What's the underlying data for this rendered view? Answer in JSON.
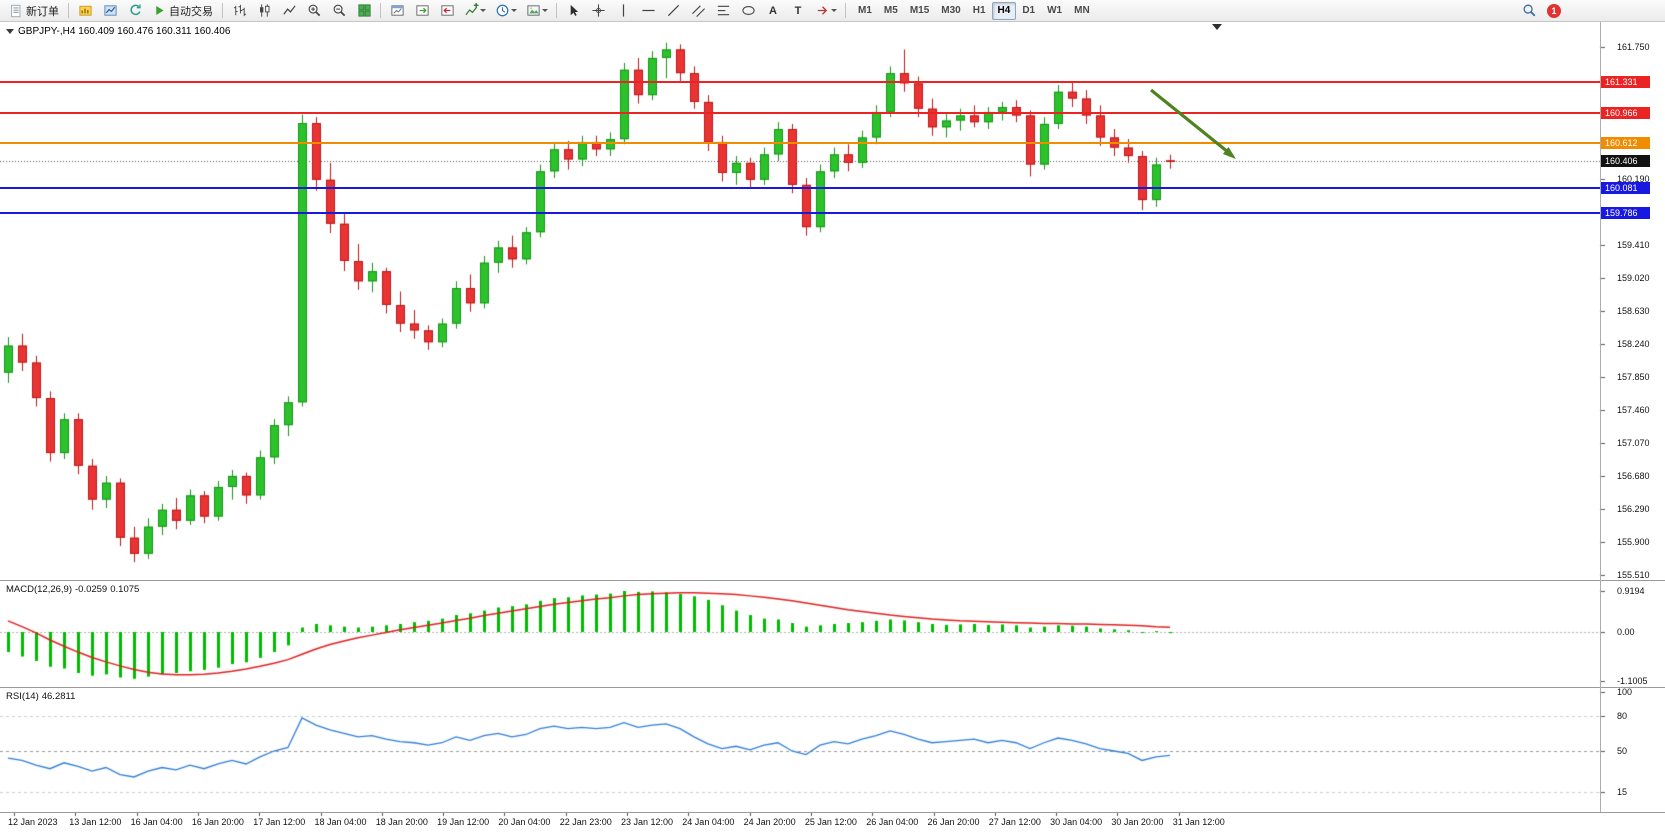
{
  "toolbar": {
    "new_order_label": "新订单",
    "auto_trading_label": "自动交易",
    "timeframes": [
      "M1",
      "M5",
      "M15",
      "M30",
      "H1",
      "H4",
      "D1",
      "W1",
      "MN"
    ],
    "active_timeframe": "H4",
    "notification_count": "1"
  },
  "icons": {
    "text_tool": "A",
    "label_tool": "T"
  },
  "chart": {
    "title": "GBPJPY-,H4  160.409 160.476 160.311 160.406",
    "symbol_period": "GBPJPY-,H4",
    "current_ohlc": {
      "open": "160.409",
      "high": "160.476",
      "low": "160.311",
      "close": "160.406"
    }
  },
  "price_axis": {
    "ticks": [
      {
        "label": "161.750",
        "price": 161.75
      },
      {
        "label": "161.360",
        "price": 161.36
      },
      {
        "label": "160.970",
        "price": 160.97
      },
      {
        "label": "160.580",
        "price": 160.58
      },
      {
        "label": "160.190",
        "price": 160.19
      },
      {
        "label": "159.800",
        "price": 159.8
      },
      {
        "label": "159.410",
        "price": 159.41
      },
      {
        "label": "159.020",
        "price": 159.02
      },
      {
        "label": "158.630",
        "price": 158.63
      },
      {
        "label": "158.240",
        "price": 158.24
      },
      {
        "label": "157.850",
        "price": 157.85
      },
      {
        "label": "157.460",
        "price": 157.46
      },
      {
        "label": "157.070",
        "price": 157.07
      },
      {
        "label": "156.680",
        "price": 156.68
      },
      {
        "label": "156.290",
        "price": 156.29
      },
      {
        "label": "155.900",
        "price": 155.9
      },
      {
        "label": "155.510",
        "price": 155.51
      }
    ],
    "tags": [
      {
        "label": "161.331",
        "price": 161.331,
        "color": "#ec2323"
      },
      {
        "label": "160.966",
        "price": 160.966,
        "color": "#ec2323"
      },
      {
        "label": "160.612",
        "price": 160.612,
        "color": "#f08c00"
      },
      {
        "label": "160.406",
        "price": 160.406,
        "color": "#111111"
      },
      {
        "label": "160.081",
        "price": 160.081,
        "color": "#1818e0"
      },
      {
        "label": "159.786",
        "price": 159.786,
        "color": "#1818e0"
      }
    ]
  },
  "macd_panel": {
    "label": "MACD(12,26,9)",
    "value": "-0.0259",
    "signal": "0.1075",
    "axis": [
      {
        "label": "0.9194",
        "v": 0.9194
      },
      {
        "label": "0.00",
        "v": 0
      },
      {
        "label": "-1.1005",
        "v": -1.1005
      }
    ]
  },
  "rsi_panel": {
    "label": "RSI(14)",
    "value": "46.2811",
    "axis": [
      {
        "label": "100",
        "v": 100
      },
      {
        "label": "80",
        "v": 80
      },
      {
        "label": "50",
        "v": 50
      },
      {
        "label": "15",
        "v": 15
      }
    ]
  },
  "time_axis": {
    "labels": [
      "12 Jan 2023",
      "13 Jan 12:00",
      "16 Jan 04:00",
      "16 Jan 20:00",
      "17 Jan 12:00",
      "18 Jan 04:00",
      "18 Jan 20:00",
      "19 Jan 12:00",
      "20 Jan 04:00",
      "22 Jan 23:00",
      "23 Jan 12:00",
      "24 Jan 04:00",
      "24 Jan 20:00",
      "25 Jan 12:00",
      "26 Jan 04:00",
      "26 Jan 20:00",
      "27 Jan 12:00",
      "30 Jan 04:00",
      "30 Jan 20:00",
      "31 Jan 12:00"
    ]
  },
  "chart_data": [
    {
      "type": "candlestick",
      "title": "GBPJPY- H4",
      "interval_hours": 4,
      "time_start": "2023-01-12 00:00",
      "ylim": [
        155.45,
        161.95
      ],
      "bid_price": 160.406,
      "candles": [
        [
          157.9,
          158.32,
          157.78,
          158.22
        ],
        [
          158.22,
          158.36,
          157.92,
          158.02
        ],
        [
          158.02,
          158.1,
          157.5,
          157.6
        ],
        [
          157.6,
          157.68,
          156.85,
          156.95
        ],
        [
          156.95,
          157.42,
          156.88,
          157.35
        ],
        [
          157.35,
          157.42,
          156.7,
          156.8
        ],
        [
          156.8,
          156.88,
          156.28,
          156.4
        ],
        [
          156.4,
          156.68,
          156.3,
          156.6
        ],
        [
          156.6,
          156.65,
          155.85,
          155.95
        ],
        [
          155.95,
          156.08,
          155.66,
          155.76
        ],
        [
          155.76,
          156.18,
          155.7,
          156.08
        ],
        [
          156.08,
          156.35,
          155.98,
          156.28
        ],
        [
          156.28,
          156.42,
          156.05,
          156.15
        ],
        [
          156.15,
          156.52,
          156.1,
          156.45
        ],
        [
          156.45,
          156.5,
          156.12,
          156.2
        ],
        [
          156.2,
          156.62,
          156.15,
          156.55
        ],
        [
          156.55,
          156.75,
          156.4,
          156.68
        ],
        [
          156.68,
          156.72,
          156.35,
          156.45
        ],
        [
          156.45,
          156.98,
          156.4,
          156.9
        ],
        [
          156.9,
          157.35,
          156.82,
          157.28
        ],
        [
          157.28,
          157.62,
          157.15,
          157.55
        ],
        [
          157.55,
          160.95,
          157.5,
          160.85
        ],
        [
          160.85,
          160.92,
          160.05,
          160.18
        ],
        [
          160.18,
          160.38,
          159.55,
          159.66
        ],
        [
          159.66,
          159.78,
          159.1,
          159.22
        ],
        [
          159.22,
          159.42,
          158.88,
          158.98
        ],
        [
          158.98,
          159.2,
          158.85,
          159.1
        ],
        [
          159.1,
          159.14,
          158.6,
          158.7
        ],
        [
          158.7,
          158.86,
          158.38,
          158.48
        ],
        [
          158.48,
          158.64,
          158.3,
          158.4
        ],
        [
          158.4,
          158.46,
          158.17,
          158.26
        ],
        [
          158.26,
          158.54,
          158.2,
          158.48
        ],
        [
          158.48,
          158.98,
          158.42,
          158.9
        ],
        [
          158.9,
          159.06,
          158.62,
          158.72
        ],
        [
          158.72,
          159.28,
          158.66,
          159.2
        ],
        [
          159.2,
          159.46,
          159.08,
          159.38
        ],
        [
          159.38,
          159.52,
          159.14,
          159.24
        ],
        [
          159.24,
          159.62,
          159.18,
          159.56
        ],
        [
          159.56,
          160.36,
          159.5,
          160.28
        ],
        [
          160.28,
          160.62,
          160.2,
          160.54
        ],
        [
          160.54,
          160.64,
          160.3,
          160.42
        ],
        [
          160.42,
          160.7,
          160.34,
          160.62
        ],
        [
          160.62,
          160.7,
          160.46,
          160.54
        ],
        [
          160.54,
          160.74,
          160.46,
          160.66
        ],
        [
          160.66,
          161.56,
          160.6,
          161.48
        ],
        [
          161.48,
          161.62,
          161.08,
          161.18
        ],
        [
          161.18,
          161.7,
          161.12,
          161.62
        ],
        [
          161.62,
          161.8,
          161.38,
          161.72
        ],
        [
          161.72,
          161.78,
          161.34,
          161.44
        ],
        [
          161.44,
          161.52,
          161.02,
          161.1
        ],
        [
          161.1,
          161.18,
          160.52,
          160.62
        ],
        [
          160.62,
          160.7,
          160.16,
          160.26
        ],
        [
          160.26,
          160.46,
          160.12,
          160.38
        ],
        [
          160.38,
          160.44,
          160.08,
          160.18
        ],
        [
          160.18,
          160.56,
          160.12,
          160.48
        ],
        [
          160.48,
          160.86,
          160.4,
          160.78
        ],
        [
          160.78,
          160.84,
          160.02,
          160.12
        ],
        [
          160.12,
          160.2,
          159.52,
          159.62
        ],
        [
          159.62,
          160.36,
          159.56,
          160.28
        ],
        [
          160.28,
          160.56,
          160.2,
          160.48
        ],
        [
          160.48,
          160.6,
          160.28,
          160.38
        ],
        [
          160.38,
          160.76,
          160.32,
          160.68
        ],
        [
          160.68,
          161.06,
          160.6,
          160.98
        ],
        [
          160.98,
          161.52,
          160.92,
          161.44
        ],
        [
          161.44,
          161.72,
          161.22,
          161.32
        ],
        [
          161.32,
          161.4,
          160.92,
          161.02
        ],
        [
          161.02,
          161.14,
          160.7,
          160.8
        ],
        [
          160.8,
          160.96,
          160.68,
          160.88
        ],
        [
          160.88,
          161.02,
          160.76,
          160.94
        ],
        [
          160.94,
          161.06,
          160.8,
          160.86
        ],
        [
          160.86,
          161.04,
          160.78,
          160.98
        ],
        [
          160.98,
          161.1,
          160.88,
          161.04
        ],
        [
          161.04,
          161.12,
          160.86,
          160.94
        ],
        [
          160.94,
          161.0,
          160.22,
          160.36
        ],
        [
          160.36,
          160.92,
          160.3,
          160.84
        ],
        [
          160.84,
          161.3,
          160.78,
          161.22
        ],
        [
          161.22,
          161.34,
          161.04,
          161.14
        ],
        [
          161.14,
          161.24,
          160.84,
          160.94
        ],
        [
          160.94,
          161.06,
          160.58,
          160.68
        ],
        [
          160.68,
          160.78,
          160.46,
          160.56
        ],
        [
          160.56,
          160.66,
          160.38,
          160.46
        ],
        [
          160.46,
          160.52,
          159.82,
          159.94
        ],
        [
          159.94,
          160.44,
          159.86,
          160.36
        ],
        [
          160.409,
          160.476,
          160.311,
          160.406
        ]
      ],
      "hlines": [
        {
          "price": 161.331,
          "color": "#ec2323",
          "style": "solid"
        },
        {
          "price": 160.966,
          "color": "#ec2323",
          "style": "solid"
        },
        {
          "price": 160.612,
          "color": "#f08c00",
          "style": "solid"
        },
        {
          "price": 160.406,
          "color": "#444444",
          "style": "dashed-bid"
        },
        {
          "price": 160.081,
          "color": "#1818e0",
          "style": "solid"
        },
        {
          "price": 159.786,
          "color": "#1818e0",
          "style": "solid"
        }
      ],
      "annotation_arrow": {
        "direction": "down-right",
        "from_price": 161.33,
        "to_price": 160.42,
        "color": "#4e8320"
      }
    },
    {
      "type": "bar",
      "name": "MACD(12,26,9)",
      "ylim": [
        -1.1005,
        0.9194
      ],
      "last_values": [
        -0.0259,
        0.1075
      ],
      "values": [
        -0.45,
        -0.55,
        -0.65,
        -0.78,
        -0.82,
        -0.92,
        -0.98,
        -0.95,
        -1.02,
        -1.05,
        -1.0,
        -0.95,
        -0.92,
        -0.88,
        -0.85,
        -0.8,
        -0.72,
        -0.68,
        -0.58,
        -0.45,
        -0.3,
        0.1,
        0.18,
        0.15,
        0.12,
        0.1,
        0.12,
        0.15,
        0.18,
        0.22,
        0.25,
        0.3,
        0.38,
        0.42,
        0.48,
        0.55,
        0.58,
        0.62,
        0.7,
        0.76,
        0.78,
        0.82,
        0.84,
        0.86,
        0.92,
        0.9,
        0.91,
        0.89,
        0.85,
        0.8,
        0.72,
        0.6,
        0.48,
        0.38,
        0.3,
        0.28,
        0.2,
        0.12,
        0.15,
        0.18,
        0.2,
        0.22,
        0.25,
        0.28,
        0.26,
        0.22,
        0.18,
        0.16,
        0.17,
        0.18,
        0.16,
        0.17,
        0.15,
        0.1,
        0.12,
        0.15,
        0.14,
        0.12,
        0.08,
        0.06,
        0.04,
        -0.02,
        0.02,
        -0.0259
      ],
      "signal_line": [
        0.25,
        0.12,
        -0.02,
        -0.18,
        -0.32,
        -0.45,
        -0.57,
        -0.67,
        -0.76,
        -0.84,
        -0.9,
        -0.94,
        -0.96,
        -0.96,
        -0.95,
        -0.92,
        -0.88,
        -0.83,
        -0.77,
        -0.7,
        -0.62,
        -0.5,
        -0.38,
        -0.28,
        -0.2,
        -0.13,
        -0.07,
        -0.01,
        0.05,
        0.1,
        0.15,
        0.2,
        0.26,
        0.31,
        0.37,
        0.42,
        0.47,
        0.52,
        0.57,
        0.62,
        0.66,
        0.7,
        0.74,
        0.77,
        0.81,
        0.84,
        0.86,
        0.87,
        0.88,
        0.88,
        0.87,
        0.86,
        0.84,
        0.81,
        0.78,
        0.74,
        0.7,
        0.65,
        0.6,
        0.55,
        0.5,
        0.46,
        0.42,
        0.38,
        0.35,
        0.32,
        0.29,
        0.27,
        0.25,
        0.24,
        0.23,
        0.22,
        0.21,
        0.2,
        0.19,
        0.19,
        0.18,
        0.18,
        0.17,
        0.16,
        0.15,
        0.14,
        0.12,
        0.1075
      ]
    },
    {
      "type": "line",
      "name": "RSI(14)",
      "ylim": [
        0,
        100
      ],
      "levels": [
        80,
        50,
        15
      ],
      "last_value": 46.2811,
      "values": [
        44,
        42,
        38,
        35,
        40,
        37,
        33,
        36,
        30,
        28,
        33,
        36,
        34,
        38,
        35,
        39,
        42,
        39,
        45,
        50,
        53,
        78,
        72,
        68,
        65,
        62,
        63,
        60,
        58,
        57,
        55,
        57,
        62,
        59,
        63,
        65,
        62,
        64,
        69,
        71,
        69,
        70,
        69,
        70,
        74,
        70,
        72,
        73,
        69,
        62,
        56,
        52,
        54,
        51,
        55,
        57,
        50,
        47,
        55,
        58,
        56,
        60,
        63,
        67,
        64,
        60,
        57,
        58,
        59,
        60,
        57,
        59,
        57,
        52,
        57,
        61,
        59,
        56,
        52,
        50,
        48,
        42,
        45,
        46.2811
      ]
    }
  ]
}
